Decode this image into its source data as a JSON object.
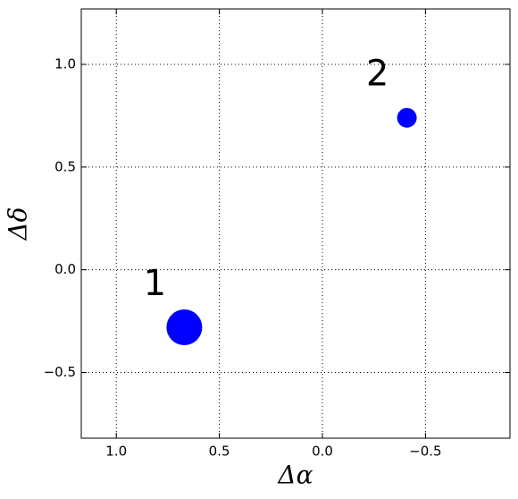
{
  "chart_data": {
    "type": "scatter",
    "x_label": "Δα",
    "y_label": "Δδ",
    "series": [
      {
        "color": "#0000ff",
        "x": [
          0.67,
          -0.41
        ],
        "values": [
          -0.28,
          0.74
        ],
        "sizes": [
          20,
          11
        ],
        "labels": [
          "1",
          "2"
        ]
      }
    ],
    "xlim": [
      1.17,
      -0.91
    ],
    "ylim": [
      -0.82,
      1.27
    ],
    "xticks": [
      {
        "value": 1,
        "label": "1.0"
      },
      0.5,
      {
        "value": 0,
        "label": "0.0"
      },
      {
        "value": -0.5,
        "label": "−0.5"
      }
    ],
    "yticks": [
      {
        "value": -0.5,
        "label": "−0.5"
      },
      {
        "value": 0,
        "label": "0.0"
      },
      0.5,
      {
        "value": 1,
        "label": "1.0"
      }
    ],
    "grid": true
  }
}
